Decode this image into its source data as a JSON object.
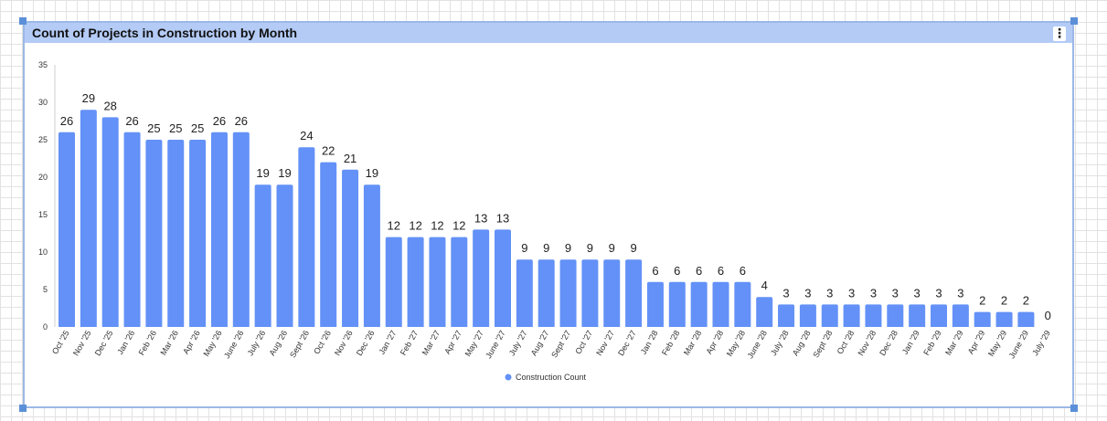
{
  "widget": {
    "title": "Count of Projects in Construction by Month",
    "menu_icon": "more-vert-icon"
  },
  "colors": {
    "bar": "#6391f7",
    "header": "#b4cbf6",
    "border": "#9bb8e6"
  },
  "chart_data": {
    "type": "bar",
    "title": "Count of Projects in Construction by Month",
    "categories": [
      "Oct '25",
      "Nov '25",
      "Dec '25",
      "Jan '26",
      "Feb '26",
      "Mar '26",
      "Apr '26",
      "May '26",
      "June '26",
      "July '26",
      "Aug '26",
      "Sept '26",
      "Oct '26",
      "Nov '26",
      "Dec '26",
      "Jan '27",
      "Feb '27",
      "Mar '27",
      "Apr '27",
      "May '27",
      "June '27",
      "July '27",
      "Aug '27",
      "Sept '27",
      "Oct '27",
      "Nov '27",
      "Dec '27",
      "Jan '28",
      "Feb '28",
      "Mar '28",
      "Apr '28",
      "May '28",
      "June '28",
      "July '28",
      "Aug '28",
      "Sept '28",
      "Oct '28",
      "Nov '28",
      "Dec '28",
      "Jan '29",
      "Feb '29",
      "Mar '29",
      "Apr '29",
      "May '29",
      "June '29",
      "July '29"
    ],
    "series": [
      {
        "name": "Construction Count",
        "values": [
          26,
          29,
          28,
          26,
          25,
          25,
          25,
          26,
          26,
          19,
          19,
          24,
          22,
          21,
          19,
          12,
          12,
          12,
          12,
          13,
          13,
          9,
          9,
          9,
          9,
          9,
          9,
          6,
          6,
          6,
          6,
          6,
          4,
          3,
          3,
          3,
          3,
          3,
          3,
          3,
          3,
          3,
          2,
          2,
          2,
          0
        ]
      }
    ],
    "yticks": [
      0,
      5,
      10,
      15,
      20,
      25,
      30,
      35
    ],
    "ylim": [
      0,
      35
    ],
    "xlabel": "",
    "ylabel": "",
    "grid": false,
    "legend": "bottom-center",
    "data_labels": true
  }
}
